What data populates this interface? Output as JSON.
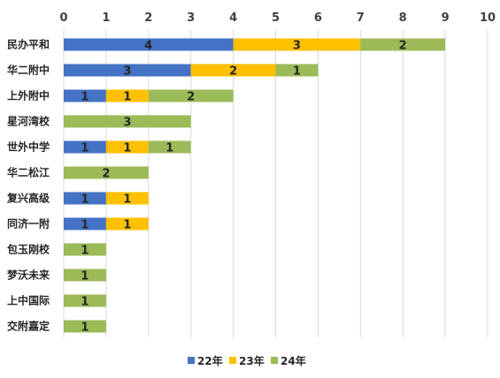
{
  "chart_data": {
    "type": "bar",
    "orientation": "horizontal",
    "stacked": true,
    "xlim": [
      0,
      10
    ],
    "x_ticks": [
      "0",
      "1",
      "2",
      "3",
      "4",
      "5",
      "6",
      "7",
      "8",
      "9",
      "10"
    ],
    "x_axis_position": "top",
    "grid": true,
    "legend_position": "bottom",
    "categories": [
      "民办平和",
      "华二附中",
      "上外附中",
      "星河湾校",
      "世外中学",
      "华二松江",
      "复兴高级",
      "同济一附",
      "包玉刚校",
      "梦沃未来",
      "上中国际",
      "交附嘉定"
    ],
    "series": [
      {
        "name": "22年",
        "color": "#4472C4",
        "values": [
          4,
          3,
          1,
          0,
          1,
          0,
          1,
          1,
          0,
          0,
          0,
          0
        ]
      },
      {
        "name": "23年",
        "color": "#FFC000",
        "values": [
          3,
          2,
          1,
          0,
          1,
          0,
          1,
          1,
          0,
          0,
          0,
          0
        ]
      },
      {
        "name": "24年",
        "color": "#9BBB59",
        "values": [
          2,
          1,
          2,
          3,
          1,
          2,
          0,
          0,
          1,
          1,
          1,
          1
        ]
      }
    ]
  }
}
